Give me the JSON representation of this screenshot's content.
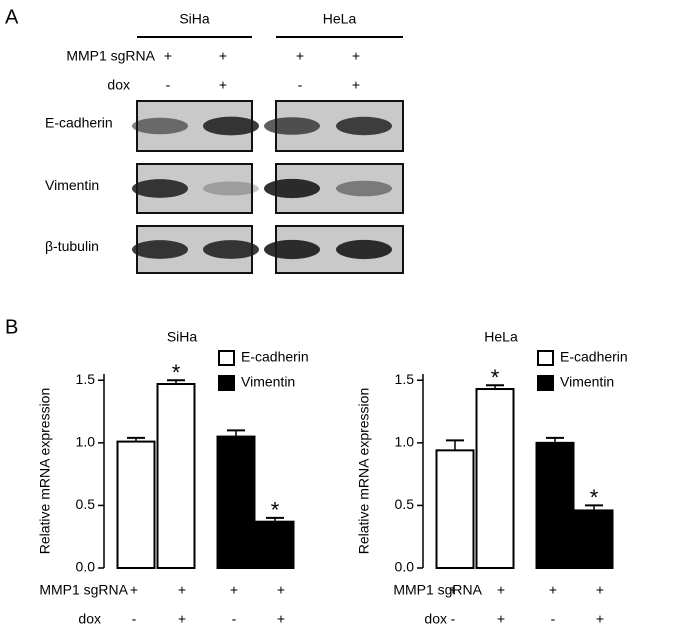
{
  "panel_a": {
    "label": "A",
    "cell_lines": [
      "SiHa",
      "HeLa"
    ],
    "conditions": [
      {
        "label": "MMP1 sgRNA",
        "values": [
          "+",
          "+",
          "+",
          "+"
        ]
      },
      {
        "label": "dox",
        "values": [
          "-",
          "+",
          "-",
          "+"
        ]
      }
    ],
    "proteins": [
      "E-cadherin",
      "Vimentin",
      "β-tubulin"
    ]
  },
  "panel_b_label": "B",
  "chart_data": [
    {
      "type": "bar",
      "title": "SiHa",
      "ylabel": "Relative mRNA expression",
      "categories": [
        null,
        null,
        null,
        null
      ],
      "conditions": [
        {
          "label": "MMP1 sgRNA",
          "values": [
            "+",
            "+",
            "+",
            "+"
          ]
        },
        {
          "label": "dox",
          "values": [
            "-",
            "+",
            "-",
            "+"
          ]
        }
      ],
      "series": [
        {
          "name": "E-cadherin",
          "color": "#ffffff",
          "values": [
            1.01,
            1.47,
            null,
            null
          ],
          "errors": [
            0.03,
            0.03,
            null,
            null
          ],
          "significance": [
            null,
            "*",
            null,
            null
          ]
        },
        {
          "name": "Vimentin",
          "color": "#000000",
          "values": [
            null,
            null,
            1.05,
            0.37
          ],
          "errors": [
            null,
            null,
            0.05,
            0.03
          ],
          "significance": [
            null,
            null,
            null,
            "*"
          ]
        }
      ],
      "ylim": [
        0,
        1.55
      ],
      "yticks": [
        {
          "value": 0,
          "label": "0.0"
        },
        {
          "value": 0.5,
          "label": "0.5"
        },
        {
          "value": 1,
          "label": "1.0"
        },
        {
          "value": 1.5,
          "label": "1.5"
        }
      ]
    },
    {
      "type": "bar",
      "title": "HeLa",
      "ylabel": "Relative mRNA expression",
      "categories": [
        null,
        null,
        null,
        null
      ],
      "conditions": [
        {
          "label": "MMP1 sgRNA",
          "values": [
            "+",
            "+",
            "+",
            "+"
          ]
        },
        {
          "label": "dox",
          "values": [
            "-",
            "+",
            "-",
            "+"
          ]
        }
      ],
      "series": [
        {
          "name": "E-cadherin",
          "color": "#ffffff",
          "values": [
            0.94,
            1.43,
            null,
            null
          ],
          "errors": [
            0.08,
            0.03,
            null,
            null
          ],
          "significance": [
            null,
            "*",
            null,
            null
          ]
        },
        {
          "name": "Vimentin",
          "color": "#000000",
          "values": [
            null,
            null,
            1.0,
            0.46
          ],
          "errors": [
            null,
            null,
            0.04,
            0.04
          ],
          "significance": [
            null,
            null,
            null,
            "*"
          ]
        }
      ],
      "ylim": [
        0,
        1.55
      ],
      "yticks": [
        {
          "value": 0,
          "label": "0.0"
        },
        {
          "value": 0.5,
          "label": "0.5"
        },
        {
          "value": 1,
          "label": "1.0"
        },
        {
          "value": 1.5,
          "label": "1.5"
        }
      ]
    }
  ]
}
